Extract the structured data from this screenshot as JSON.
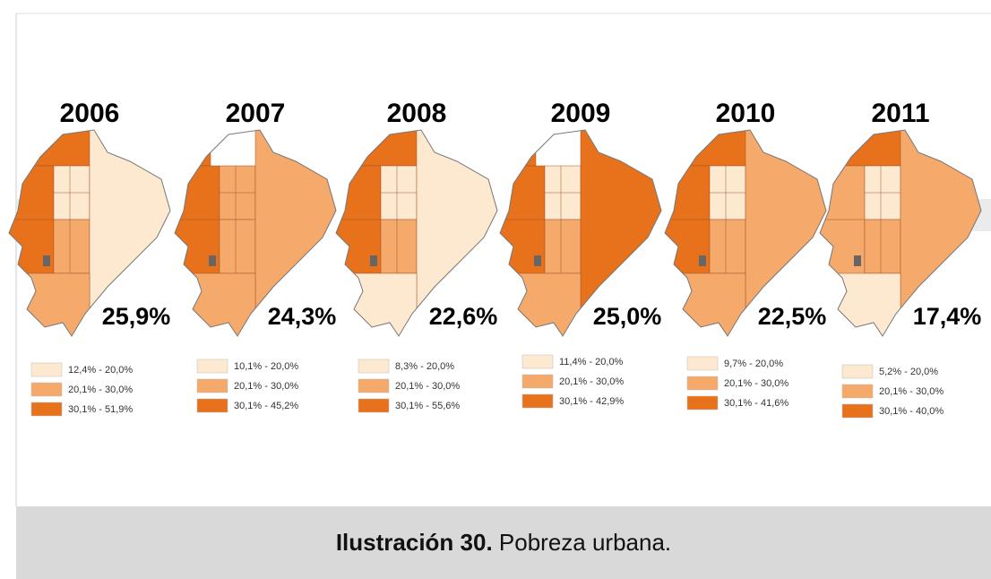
{
  "colors": [
    "#fde9cf",
    "#f5a96a",
    "#e8711c"
  ],
  "maps": [
    {
      "year": "2006",
      "total": "25,9%",
      "legend": [
        "12,4% - 20,0%",
        "20,1% - 30,0%",
        "30,1% - 51,9%"
      ]
    },
    {
      "year": "2007",
      "total": "24,3%",
      "legend": [
        "10,1% - 20,0%",
        "20,1% - 30,0%",
        "30,1% - 45,2%"
      ]
    },
    {
      "year": "2008",
      "total": "22,6%",
      "legend": [
        "8,3% - 20,0%",
        "20,1% - 30,0%",
        "30,1% - 55,6%"
      ]
    },
    {
      "year": "2009",
      "total": "25,0%",
      "legend": [
        "11,4% - 20,0%",
        "20,1% - 30,0%",
        "30,1% - 42,9%"
      ]
    },
    {
      "year": "2010",
      "total": "22,5%",
      "legend": [
        "9,7% - 20,0%",
        "20,1% - 30,0%",
        "30,1% - 41,6%"
      ]
    },
    {
      "year": "2011",
      "total": "17,4%",
      "legend": [
        "5,2% - 20,0%",
        "20,1% - 30,0%",
        "30,1% - 40,0%"
      ]
    }
  ],
  "caption": {
    "label": "Ilustración 30.",
    "text": "Pobreza urbana."
  }
}
